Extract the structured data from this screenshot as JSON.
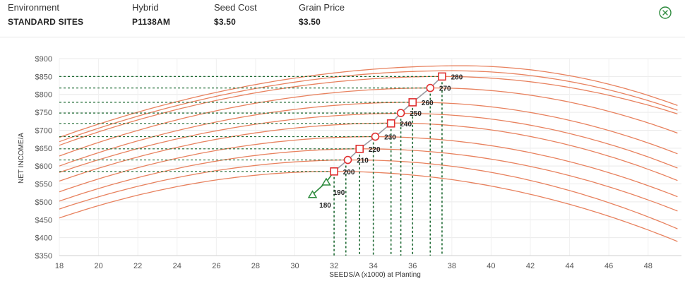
{
  "header": {
    "fields": [
      {
        "label": "Environment",
        "value": "STANDARD SITES"
      },
      {
        "label": "Hybrid",
        "value": "P1138AM"
      },
      {
        "label": "Seed Cost",
        "value": "$3.50"
      },
      {
        "label": "Grain Price",
        "value": "$3.50"
      }
    ],
    "close_icon": "close-circle-icon",
    "accent_color": "#2e8b3e"
  },
  "chart_data": {
    "type": "line",
    "title": "",
    "xlabel": "SEEDS/A (x1000) at Planting",
    "ylabel": "NET INCOME/A",
    "xlim": [
      18,
      49.5
    ],
    "ylim": [
      350,
      900
    ],
    "x_ticks": [
      18,
      20,
      22,
      24,
      26,
      28,
      30,
      32,
      34,
      36,
      38,
      40,
      42,
      44,
      46,
      48
    ],
    "y_ticks": [
      350,
      400,
      450,
      500,
      550,
      600,
      650,
      700,
      750,
      800,
      850,
      900
    ],
    "y_tick_labels": [
      "$350",
      "$400",
      "$450",
      "$500",
      "$550",
      "$600",
      "$650",
      "$700",
      "$750",
      "$800",
      "$850",
      "$900"
    ],
    "grid": true,
    "colors": {
      "curve": "#e8825f",
      "optimum_line": "#9a9aa2",
      "low_segment": "#2e8b3e",
      "square_marker": "#e03030",
      "circle_marker": "#e03030",
      "triangle_marker": "#2e8b3e",
      "guide": "#1f6b34"
    },
    "curves": [
      {
        "label": "180",
        "y18": 455,
        "peak": [
          32.0,
          585
        ],
        "y49": 385
      },
      {
        "label": "190",
        "y18": 480,
        "peak": [
          33.0,
          617
        ],
        "y49": 420
      },
      {
        "label": "200",
        "y18": 502,
        "peak": [
          33.5,
          648
        ],
        "y49": 470
      },
      {
        "label": "210",
        "y18": 528,
        "peak": [
          34.0,
          682
        ],
        "y49": 510
      },
      {
        "label": "220",
        "y18": 558,
        "peak": [
          35.0,
          720
        ],
        "y49": 555
      },
      {
        "label": "230",
        "y18": 582,
        "peak": [
          35.5,
          747
        ],
        "y49": 590
      },
      {
        "label": "240",
        "y18": 600,
        "peak": [
          36.0,
          778
        ],
        "y49": 630
      },
      {
        "label": "250",
        "y18": 628,
        "peak": [
          37.0,
          818
        ],
        "y49": 688
      },
      {
        "label": "260",
        "y18": 658,
        "peak": [
          37.5,
          850
        ],
        "y49": 742
      },
      {
        "label": "270",
        "y18": 668,
        "peak": [
          38.0,
          866
        ],
        "y49": 752
      },
      {
        "label": "280",
        "y18": 680,
        "peak": [
          38.5,
          880
        ],
        "y49": 765
      }
    ],
    "optimum_points": [
      {
        "label": "180",
        "x": 30.9,
        "y": 520,
        "marker": "triangle"
      },
      {
        "label": "190",
        "x": 31.6,
        "y": 555,
        "marker": "triangle"
      },
      {
        "label": "200",
        "x": 32.0,
        "y": 585,
        "marker": "square"
      },
      {
        "label": "210",
        "x": 32.7,
        "y": 617,
        "marker": "circle"
      },
      {
        "label": "220",
        "x": 33.3,
        "y": 648,
        "marker": "square"
      },
      {
        "label": "230",
        "x": 34.1,
        "y": 682,
        "marker": "circle"
      },
      {
        "label": "240",
        "x": 34.9,
        "y": 719,
        "marker": "square"
      },
      {
        "label": "250",
        "x": 35.4,
        "y": 748,
        "marker": "circle"
      },
      {
        "label": "260",
        "x": 36.0,
        "y": 778,
        "marker": "square"
      },
      {
        "label": "270",
        "x": 36.9,
        "y": 818,
        "marker": "circle"
      },
      {
        "label": "280",
        "x": 37.5,
        "y": 850,
        "marker": "square"
      }
    ],
    "guide_drop_x": [
      32.0,
      32.6,
      33.3,
      34.0,
      34.9,
      35.4,
      36.0,
      36.9,
      37.5
    ]
  }
}
